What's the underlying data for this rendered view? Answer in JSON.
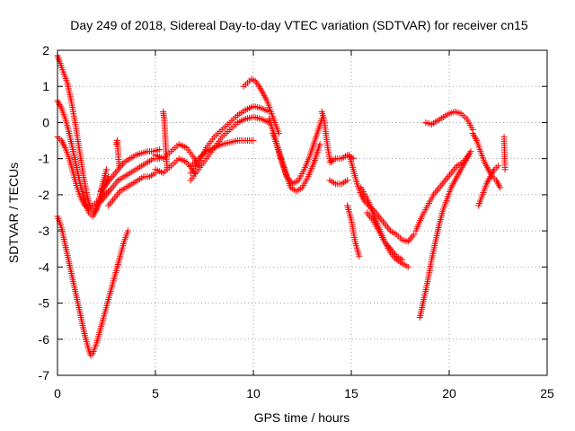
{
  "chart_data": {
    "type": "scatter",
    "title": "Day 249 of 2018, Sidereal Day-to-day VTEC variation (SDTVAR) for receiver cn15",
    "xlabel": "GPS time / hours",
    "ylabel": "SDTVAR / TECUs",
    "xlim": [
      0,
      25
    ],
    "ylim": [
      -7,
      2
    ],
    "xticks": [
      0,
      5,
      10,
      15,
      20,
      25
    ],
    "yticks": [
      -7,
      -6,
      -5,
      -4,
      -3,
      -2,
      -1,
      0,
      1,
      2
    ],
    "xtick_labels": [
      "0",
      "5",
      "10",
      "15",
      "20",
      "25"
    ],
    "ytick_labels": [
      "-7",
      "-6",
      "-5",
      "-4",
      "-3",
      "-2",
      "-1",
      "0",
      "1",
      "2"
    ],
    "grid": true,
    "marker": "+",
    "color": "#ff0000",
    "series": [
      {
        "name": "arc-deep-dip",
        "x": [
          0.0,
          0.2,
          0.4,
          0.6,
          0.8,
          1.0,
          1.2,
          1.4,
          1.6,
          1.7,
          1.8,
          2.0,
          2.2,
          2.4,
          2.6,
          2.8,
          3.0,
          3.2,
          3.4,
          3.6
        ],
        "y": [
          -2.6,
          -2.9,
          -3.4,
          -3.9,
          -4.4,
          -4.9,
          -5.4,
          -5.9,
          -6.3,
          -6.45,
          -6.4,
          -6.1,
          -5.7,
          -5.3,
          -4.9,
          -4.5,
          -4.1,
          -3.7,
          -3.3,
          -3.0
        ]
      },
      {
        "name": "arc-upper-1",
        "x": [
          0.0,
          0.1,
          0.3,
          0.5,
          0.7,
          0.9,
          1.1,
          1.3,
          1.5,
          1.7,
          1.9,
          2.1,
          2.3,
          2.5
        ],
        "y": [
          1.85,
          1.7,
          1.4,
          1.1,
          0.6,
          0.0,
          -0.7,
          -1.4,
          -2.0,
          -2.4,
          -2.5,
          -2.2,
          -1.7,
          -1.3
        ]
      },
      {
        "name": "arc-upper-2",
        "x": [
          0.0,
          0.2,
          0.4,
          0.6,
          0.8,
          1.0,
          1.2,
          1.4,
          1.6,
          1.8,
          2.0,
          2.2,
          2.4,
          2.6
        ],
        "y": [
          0.6,
          0.4,
          0.1,
          -0.3,
          -0.8,
          -1.3,
          -1.8,
          -2.2,
          -2.5,
          -2.6,
          -2.4,
          -2.1,
          -1.8,
          -1.5
        ]
      },
      {
        "name": "arc-upper-3",
        "x": [
          0.0,
          0.2,
          0.4,
          0.6,
          0.8,
          1.0,
          1.2,
          1.4,
          1.6,
          1.8,
          2.0,
          2.2,
          2.4,
          2.6
        ],
        "y": [
          -0.4,
          -0.5,
          -0.7,
          -1.0,
          -1.4,
          -1.8,
          -2.1,
          -2.3,
          -2.4,
          -2.3,
          -2.2,
          -2.1,
          -2.0,
          -1.9
        ]
      },
      {
        "name": "band-2-5h-a",
        "x": [
          2.2,
          2.5,
          2.8,
          3.1,
          3.4,
          3.7,
          4.0,
          4.3,
          4.6,
          4.9,
          5.2
        ],
        "y": [
          -2.2,
          -2.0,
          -1.8,
          -1.6,
          -1.5,
          -1.4,
          -1.3,
          -1.2,
          -1.1,
          -1.0,
          -1.0
        ]
      },
      {
        "name": "band-2-5h-b",
        "x": [
          2.2,
          2.5,
          2.8,
          3.1,
          3.4,
          3.7,
          4.0,
          4.3,
          4.6,
          4.9,
          5.2
        ],
        "y": [
          -1.9,
          -1.7,
          -1.5,
          -1.3,
          -1.1,
          -1.0,
          -0.9,
          -0.85,
          -0.8,
          -0.8,
          -0.75
        ]
      },
      {
        "name": "band-2-5h-c",
        "x": [
          2.6,
          2.9,
          3.2,
          3.5,
          3.8,
          4.1,
          4.4,
          4.7,
          5.0
        ],
        "y": [
          -2.3,
          -2.1,
          -1.9,
          -1.8,
          -1.7,
          -1.6,
          -1.5,
          -1.5,
          -1.4
        ]
      },
      {
        "name": "spike-3h",
        "x": [
          3.0,
          3.05,
          3.1,
          3.15
        ],
        "y": [
          -0.6,
          -0.5,
          -0.9,
          -1.2
        ]
      },
      {
        "name": "spike-5h",
        "x": [
          5.4,
          5.45,
          5.5,
          5.55,
          5.6
        ],
        "y": [
          0.3,
          0.1,
          -0.4,
          -0.9,
          -1.3
        ]
      },
      {
        "name": "band-5-7h",
        "x": [
          5.0,
          5.4,
          5.8,
          6.2,
          6.6,
          7.0,
          7.2
        ],
        "y": [
          -0.9,
          -1.0,
          -0.8,
          -0.6,
          -0.7,
          -1.0,
          -1.2
        ]
      },
      {
        "name": "band-5-7h-b",
        "x": [
          5.0,
          5.4,
          5.8,
          6.2,
          6.6,
          7.0
        ],
        "y": [
          -1.3,
          -1.4,
          -1.2,
          -1.0,
          -1.1,
          -1.4
        ]
      },
      {
        "name": "rise-7-10h-a",
        "x": [
          6.8,
          7.2,
          7.6,
          8.0,
          8.4,
          8.8,
          9.2,
          9.6,
          10.0,
          10.4,
          10.8
        ],
        "y": [
          -1.4,
          -1.1,
          -0.7,
          -0.4,
          -0.2,
          0.0,
          0.2,
          0.35,
          0.45,
          0.4,
          0.3
        ]
      },
      {
        "name": "rise-7-10h-b",
        "x": [
          6.8,
          7.2,
          7.6,
          8.0,
          8.4,
          8.8,
          9.2,
          9.6,
          10.0,
          10.4,
          10.8
        ],
        "y": [
          -1.6,
          -1.3,
          -1.0,
          -0.7,
          -0.4,
          -0.2,
          0.0,
          0.1,
          0.15,
          0.1,
          0.0
        ]
      },
      {
        "name": "rise-7-10h-c",
        "x": [
          6.8,
          7.2,
          7.6,
          8.0,
          8.4,
          8.8,
          9.2,
          9.6,
          10.0
        ],
        "y": [
          -1.2,
          -1.0,
          -0.8,
          -0.7,
          -0.6,
          -0.55,
          -0.5,
          -0.5,
          -0.5
        ]
      },
      {
        "name": "hump-10h",
        "x": [
          9.5,
          9.7,
          9.9,
          10.1,
          10.3,
          10.5,
          10.7,
          10.9,
          11.1,
          11.3
        ],
        "y": [
          1.0,
          1.1,
          1.2,
          1.15,
          1.0,
          0.8,
          0.6,
          0.3,
          0.0,
          -0.3
        ]
      },
      {
        "name": "dip-12h-a",
        "x": [
          10.8,
          11.1,
          11.4,
          11.7,
          12.0,
          12.3,
          12.6,
          12.9,
          13.2,
          13.5
        ],
        "y": [
          0.1,
          -0.4,
          -1.0,
          -1.5,
          -1.7,
          -1.6,
          -1.3,
          -0.9,
          -0.4,
          0.1
        ]
      },
      {
        "name": "dip-12h-b",
        "x": [
          11.0,
          11.3,
          11.6,
          11.9,
          12.2,
          12.5,
          12.8,
          13.1,
          13.4
        ],
        "y": [
          -0.3,
          -0.8,
          -1.3,
          -1.8,
          -1.9,
          -1.8,
          -1.5,
          -1.1,
          -0.6
        ]
      },
      {
        "name": "spike-13-5h",
        "x": [
          13.5,
          13.6,
          13.7,
          13.8,
          13.9,
          14.0
        ],
        "y": [
          0.3,
          0.1,
          -0.3,
          -0.7,
          -1.0,
          -1.1
        ]
      },
      {
        "name": "band-14-15h",
        "x": [
          13.9,
          14.2,
          14.5,
          14.8,
          15.1
        ],
        "y": [
          -1.1,
          -1.0,
          -1.0,
          -0.9,
          -1.0
        ]
      },
      {
        "name": "band-14-15h-b",
        "x": [
          13.9,
          14.2,
          14.5,
          14.8
        ],
        "y": [
          -1.6,
          -1.7,
          -1.7,
          -1.6
        ]
      },
      {
        "name": "drop-15h-a",
        "x": [
          14.9,
          15.1,
          15.3,
          15.5,
          15.7,
          15.9,
          16.1,
          16.4,
          16.7,
          17.0,
          17.3,
          17.6,
          17.9,
          18.2
        ],
        "y": [
          -0.9,
          -1.3,
          -1.7,
          -2.0,
          -2.2,
          -2.3,
          -2.4,
          -2.6,
          -2.8,
          -3.0,
          -3.1,
          -3.25,
          -3.3,
          -3.1
        ]
      },
      {
        "name": "drop-15h-b",
        "x": [
          14.8,
          15.0,
          15.2,
          15.4
        ],
        "y": [
          -2.3,
          -2.7,
          -3.3,
          -3.7
        ]
      },
      {
        "name": "drop-15h-c",
        "x": [
          15.5,
          15.8,
          16.1,
          16.4,
          16.7,
          17.0,
          17.3,
          17.6,
          17.9
        ],
        "y": [
          -1.8,
          -2.1,
          -2.5,
          -2.9,
          -3.3,
          -3.6,
          -3.8,
          -3.9,
          -4.0
        ]
      },
      {
        "name": "drop-15h-d",
        "x": [
          15.8,
          16.1,
          16.4,
          16.7,
          17.0,
          17.3,
          17.6
        ],
        "y": [
          -2.5,
          -2.7,
          -3.0,
          -3.3,
          -3.5,
          -3.7,
          -3.8
        ]
      },
      {
        "name": "rise-18-21h-a",
        "x": [
          18.5,
          18.7,
          18.9,
          19.1,
          19.3,
          19.5,
          19.7,
          19.9,
          20.1,
          20.3,
          20.5,
          20.7,
          20.9,
          21.1
        ],
        "y": [
          -5.4,
          -4.9,
          -4.4,
          -3.8,
          -3.3,
          -2.8,
          -2.4,
          -2.1,
          -1.8,
          -1.6,
          -1.4,
          -1.2,
          -1.0,
          -0.8
        ]
      },
      {
        "name": "rise-18-21h-b",
        "x": [
          18.3,
          18.6,
          18.9,
          19.2,
          19.5,
          19.8,
          20.1,
          20.4,
          20.7,
          21.0
        ],
        "y": [
          -3.0,
          -2.6,
          -2.3,
          -2.0,
          -1.8,
          -1.6,
          -1.4,
          -1.2,
          -1.1,
          -0.9
        ]
      },
      {
        "name": "hump-19-21h",
        "x": [
          18.8,
          19.1,
          19.4,
          19.7,
          20.0,
          20.3,
          20.6,
          20.9,
          21.2
        ],
        "y": [
          0.0,
          -0.05,
          0.05,
          0.15,
          0.25,
          0.3,
          0.25,
          0.1,
          -0.2
        ]
      },
      {
        "name": "cluster-21-22h",
        "x": [
          21.2,
          21.4,
          21.6,
          21.8,
          22.0,
          22.2,
          22.4,
          22.6
        ],
        "y": [
          -0.3,
          -0.5,
          -0.8,
          -1.1,
          -1.3,
          -1.5,
          -1.6,
          -1.8
        ]
      },
      {
        "name": "cluster-21-22h-b",
        "x": [
          21.5,
          21.7,
          21.9,
          22.1,
          22.3,
          22.5
        ],
        "y": [
          -2.3,
          -2.0,
          -1.7,
          -1.5,
          -1.3,
          -1.2
        ]
      },
      {
        "name": "isolated-23h",
        "x": [
          22.8,
          22.85
        ],
        "y": [
          -0.4,
          -1.3
        ]
      }
    ]
  }
}
